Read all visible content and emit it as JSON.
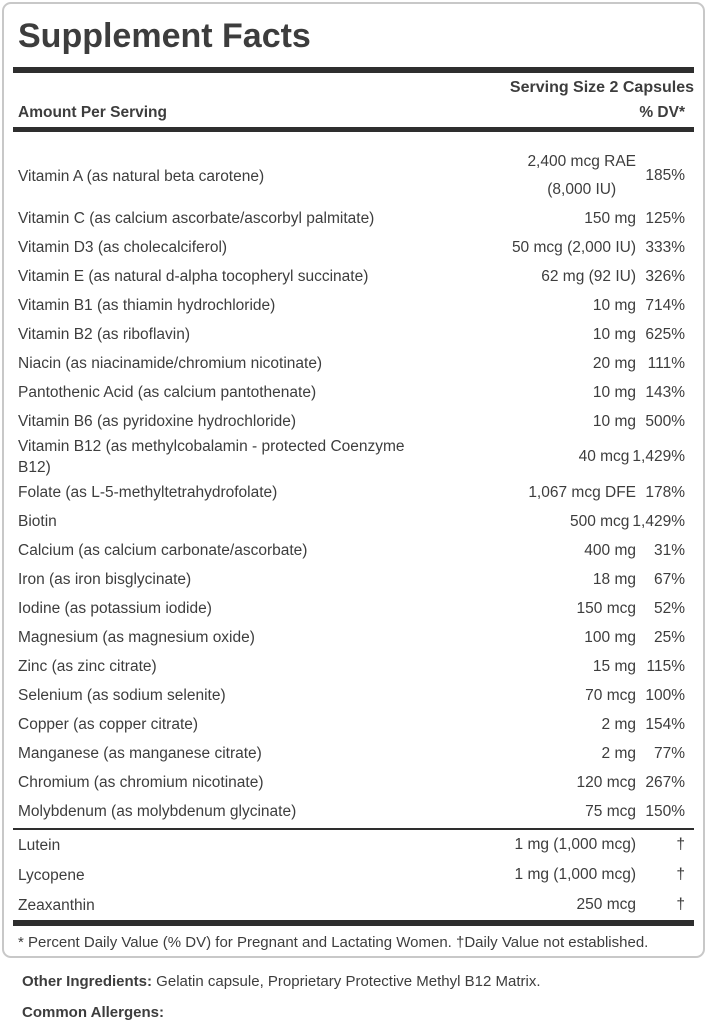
{
  "panel": {
    "title": "Supplement Facts",
    "serving_size": "Serving Size 2 Capsules",
    "columns": {
      "amount": "Amount Per Serving",
      "dv": "% DV*"
    },
    "nutrients": [
      {
        "name": "Vitamin A (as natural beta carotene)",
        "amount": "2,400 mcg RAE",
        "amount2": "(8,000 IU)",
        "dv": "185%"
      },
      {
        "name": "Vitamin C (as calcium ascorbate/ascorbyl palmitate)",
        "amount": "150 mg",
        "dv": "125%"
      },
      {
        "name": "Vitamin D3 (as cholecalciferol)",
        "amount": "50 mcg (2,000 IU)",
        "dv": "333%"
      },
      {
        "name": "Vitamin E (as natural d-alpha tocopheryl succinate)",
        "amount": "62 mg (92 IU)",
        "dv": "326%"
      },
      {
        "name": "Vitamin B1 (as thiamin hydrochloride)",
        "amount": "10 mg",
        "dv": "714%"
      },
      {
        "name": "Vitamin B2 (as riboflavin)",
        "amount": "10 mg",
        "dv": "625%"
      },
      {
        "name": "Niacin (as niacinamide/chromium nicotinate)",
        "amount": "20 mg",
        "dv": "111%"
      },
      {
        "name": "Pantothenic Acid (as calcium pantothenate)",
        "amount": "10 mg",
        "dv": "143%"
      },
      {
        "name": "Vitamin B6 (as pyridoxine hydrochloride)",
        "amount": "10 mg",
        "dv": "500%"
      },
      {
        "name": "Vitamin B12 (as methylcobalamin - protected Coenzyme B12)",
        "amount": "40 mcg",
        "dv": "1,429%"
      },
      {
        "name": "Folate (as L-5-methyltetrahydrofolate)",
        "amount": "1,067 mcg DFE",
        "dv": "178%"
      },
      {
        "name": "Biotin",
        "amount": "500 mcg",
        "dv": "1,429%"
      },
      {
        "name": "Calcium (as calcium carbonate/ascorbate)",
        "amount": "400 mg",
        "dv": "31%"
      },
      {
        "name": "Iron (as iron bisglycinate)",
        "amount": "18 mg",
        "dv": "67%"
      },
      {
        "name": "Iodine (as potassium iodide)",
        "amount": "150 mcg",
        "dv": "52%"
      },
      {
        "name": "Magnesium (as magnesium oxide)",
        "amount": "100 mg",
        "dv": "25%"
      },
      {
        "name": "Zinc (as zinc citrate)",
        "amount": "15 mg",
        "dv": "115%"
      },
      {
        "name": "Selenium (as sodium selenite)",
        "amount": "70 mcg",
        "dv": "100%"
      },
      {
        "name": "Copper (as copper citrate)",
        "amount": "2 mg",
        "dv": "154%"
      },
      {
        "name": "Manganese (as manganese citrate)",
        "amount": "2 mg",
        "dv": "77%"
      },
      {
        "name": "Chromium (as chromium nicotinate)",
        "amount": "120 mcg",
        "dv": "267%"
      },
      {
        "name": "Molybdenum (as molybdenum glycinate)",
        "amount": "75 mcg",
        "dv": "150%"
      }
    ],
    "secondary": [
      {
        "name": "Lutein",
        "amount": "1 mg (1,000 mcg)",
        "dv": "†"
      },
      {
        "name": "Lycopene",
        "amount": "1 mg (1,000 mcg)",
        "dv": "†"
      },
      {
        "name": "Zeaxanthin",
        "amount": "250 mcg",
        "dv": "†"
      }
    ],
    "footnote": "* Percent Daily Value (% DV) for Pregnant and Lactating Women. †Daily Value not established."
  },
  "below": {
    "other_ingredients_label": "Other Ingredients:",
    "other_ingredients_text": " Gelatin capsule, Proprietary Protective Methyl B12 Matrix.",
    "common_allergens_label": "Common Allergens:"
  },
  "colors": {
    "text": "#3d3d3d",
    "bar": "#2e2e2e",
    "border": "#c8c8c8",
    "background": "#ffffff"
  }
}
